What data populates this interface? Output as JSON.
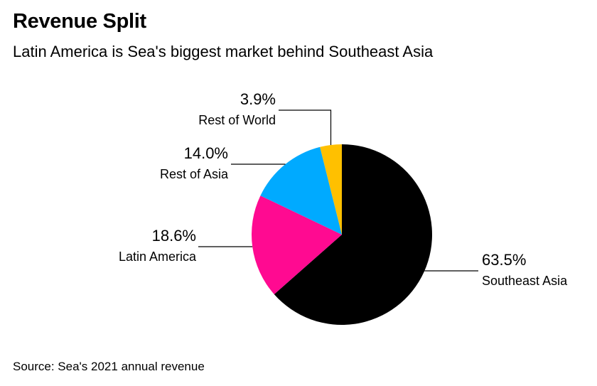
{
  "header": {
    "title": "Revenue Split",
    "subtitle": "Latin America is Sea's biggest market behind Southeast Asia"
  },
  "footer": {
    "source": "Source: Sea's 2021 annual revenue"
  },
  "chart_data": {
    "type": "pie",
    "title": "Revenue Split",
    "subtitle": "Latin America is Sea's biggest market behind Southeast Asia",
    "slices": [
      {
        "name": "Southeast Asia",
        "value": 63.5,
        "label": "63.5%",
        "color": "#000000"
      },
      {
        "name": "Latin America",
        "value": 18.6,
        "label": "18.6%",
        "color": "#ff0a91"
      },
      {
        "name": "Rest of Asia",
        "value": 14.0,
        "label": "14.0%",
        "color": "#00aaff"
      },
      {
        "name": "Rest of World",
        "value": 3.9,
        "label": "3.9%",
        "color": "#ffc000"
      }
    ],
    "start": "12 o'clock",
    "direction": "clockwise",
    "legend": "none"
  }
}
